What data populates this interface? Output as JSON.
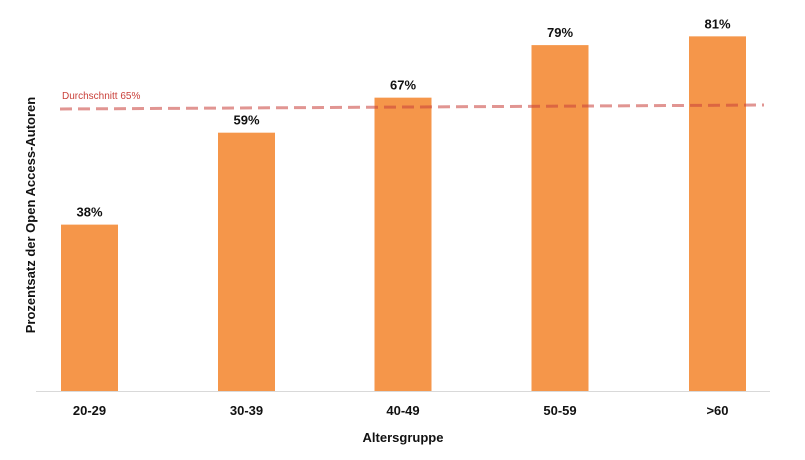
{
  "chart_data": {
    "type": "bar",
    "categories": [
      "20-29",
      "30-39",
      "40-49",
      "50-59",
      ">60"
    ],
    "values": [
      38,
      59,
      67,
      79,
      81
    ],
    "value_labels": [
      "38%",
      "59%",
      "67%",
      "79%",
      "81%"
    ],
    "xlabel": "Altersgruppe",
    "ylabel": "Prozentsatz der Open Access-Autoren",
    "ylim": [
      0,
      100
    ],
    "reference_line": {
      "value": 65,
      "label": "Durchschnitt 65%",
      "style": "dashed"
    },
    "colors": {
      "bar": "#f5964a",
      "reference": "#c9403a"
    },
    "grid": false
  }
}
